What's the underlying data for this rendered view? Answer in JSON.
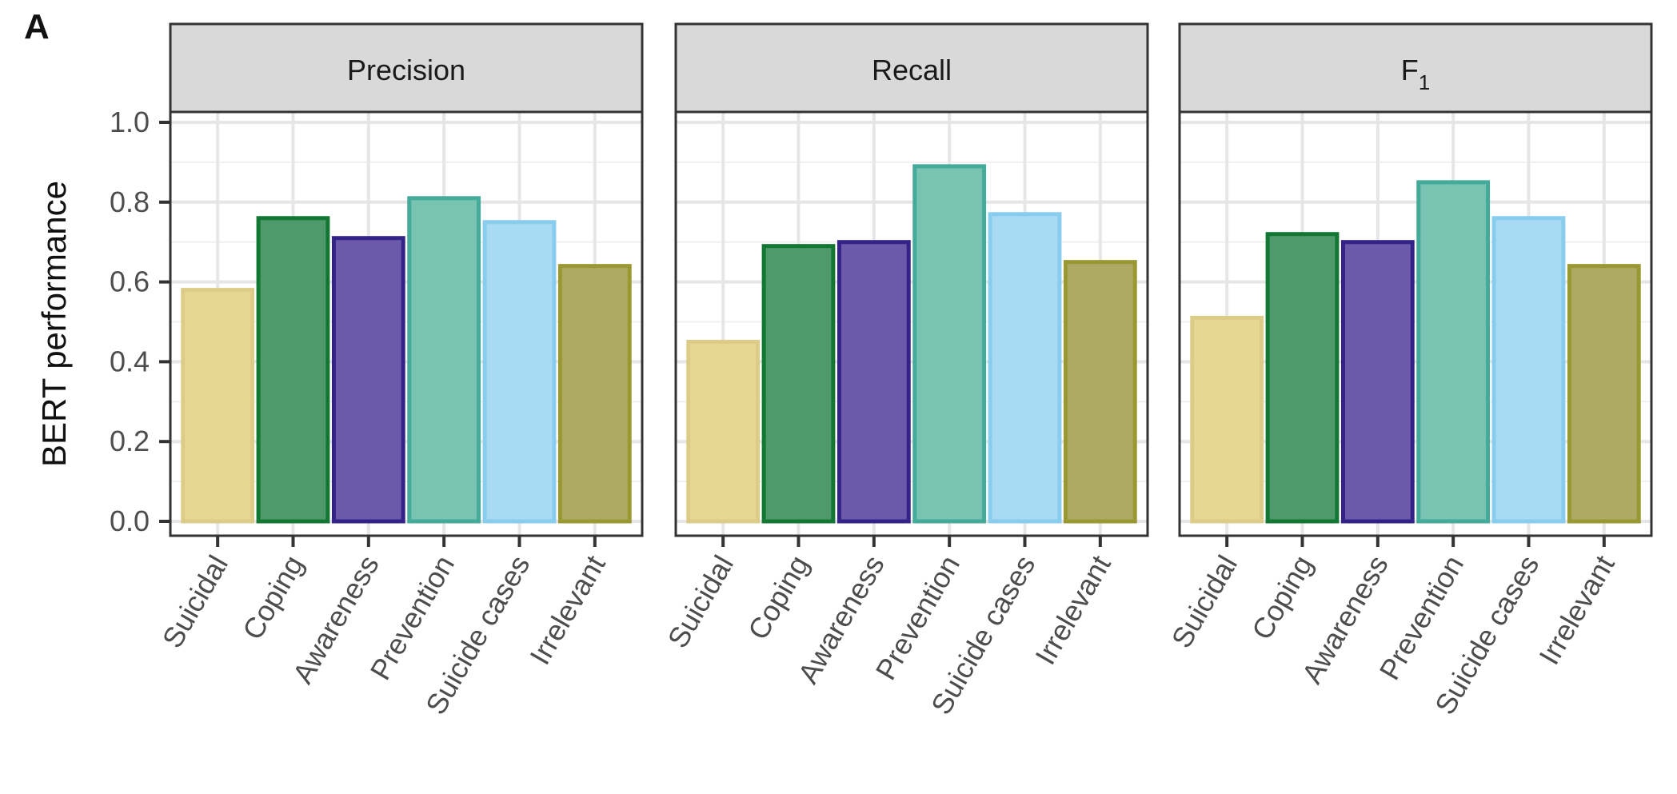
{
  "panel_label": "A",
  "chart_data": {
    "type": "bar",
    "ylabel": "BERT performance",
    "ylim": [
      0,
      1.0
    ],
    "yticks": [
      "0.0",
      "0.2",
      "0.4",
      "0.6",
      "0.8",
      "1.0"
    ],
    "ytick_values": [
      0,
      0.2,
      0.4,
      0.6,
      0.8,
      1.0
    ],
    "categories": [
      "Suicidal",
      "Coping",
      "Awareness",
      "Prevention",
      "Suicide cases",
      "Irrelevant"
    ],
    "colors": {
      "fill": [
        "#e6d793",
        "#4f9a6a",
        "#6a5aa9",
        "#78c3b2",
        "#a9daf3",
        "#aeaa66"
      ],
      "stroke": [
        "#ddcc88",
        "#117733",
        "#332288",
        "#44aa99",
        "#88ccee",
        "#999933"
      ]
    },
    "facets": [
      {
        "title": "Precision",
        "title_sub": "",
        "values": [
          0.58,
          0.76,
          0.71,
          0.81,
          0.75,
          0.64
        ]
      },
      {
        "title": "Recall",
        "title_sub": "",
        "values": [
          0.45,
          0.69,
          0.7,
          0.89,
          0.77,
          0.65
        ]
      },
      {
        "title": "F",
        "title_sub": "1",
        "values": [
          0.51,
          0.72,
          0.7,
          0.85,
          0.76,
          0.64
        ]
      }
    ],
    "grid": true,
    "legend": "none"
  }
}
